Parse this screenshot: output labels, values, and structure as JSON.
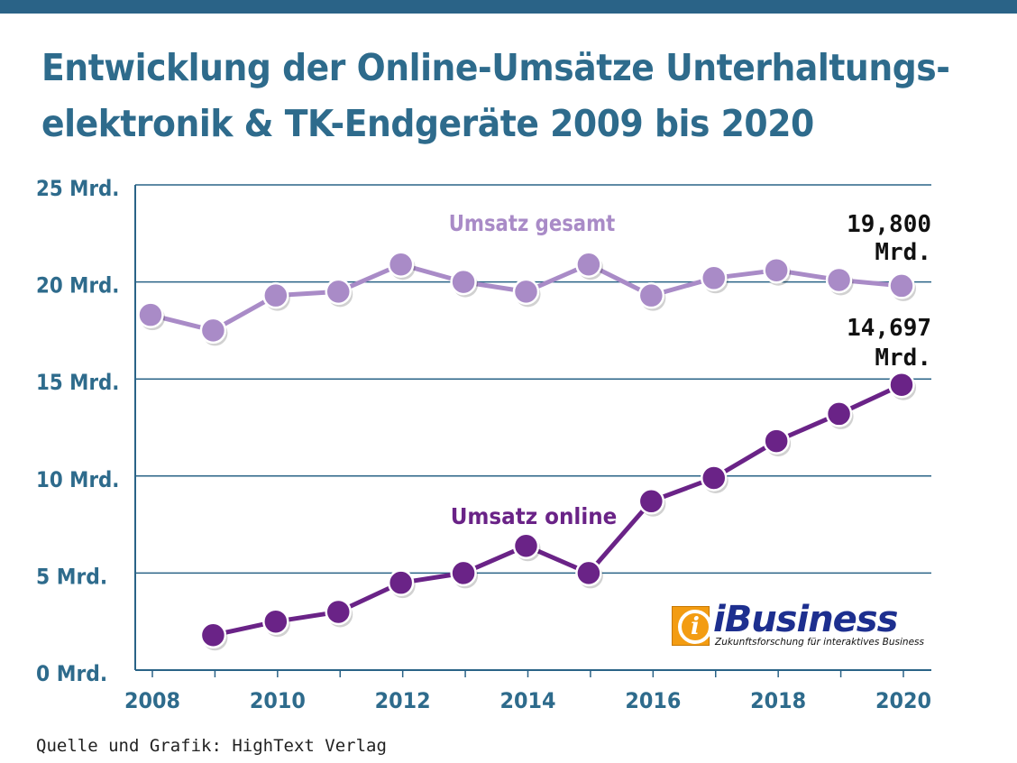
{
  "header": {
    "title_line1": "Entwicklung der Online-Umsätze Unterhaltungs-",
    "title_line2": "elektronik & TK-Endgeräte 2009 bis 2020"
  },
  "logo": {
    "mark": "i",
    "name": "iBusiness",
    "tagline": "Zukunftsforschung für interaktives Business"
  },
  "footer": {
    "source": "Quelle und Grafik: HighText Verlag"
  },
  "colors": {
    "top_bar": "#2a6387",
    "title": "#2e6b8c",
    "axis_text": "#2e6b8c",
    "gridline": "#2a6387",
    "series_gesamt": "#a98bc7",
    "series_online": "#6a2387",
    "value_label": "#111111"
  },
  "chart_data": {
    "type": "line",
    "title": "Entwicklung der Online-Umsätze Unterhaltungselektronik & TK-Endgeräte 2009 bis 2020",
    "xlim": [
      2008,
      2020
    ],
    "ylim": [
      0,
      25
    ],
    "y_ticks": [
      0,
      5,
      10,
      15,
      20,
      25
    ],
    "y_tick_labels": [
      "0 Mrd.",
      "5 Mrd.",
      "10 Mrd.",
      "15 Mrd.",
      "20 Mrd.",
      "25 Mrd."
    ],
    "x_ticks": [
      2008,
      2010,
      2012,
      2014,
      2016,
      2018,
      2020
    ],
    "x_tick_labels": [
      "2008",
      "2010",
      "2012",
      "2014",
      "2016",
      "2018",
      "2020"
    ],
    "grid": true,
    "series": [
      {
        "name": "Umsatz gesamt",
        "x": [
          2008,
          2009,
          2010,
          2011,
          2012,
          2013,
          2014,
          2015,
          2016,
          2017,
          2018,
          2019,
          2020
        ],
        "values": [
          18.3,
          17.5,
          19.3,
          19.5,
          20.9,
          20.0,
          19.5,
          20.9,
          19.3,
          20.2,
          20.6,
          20.1,
          19.8
        ]
      },
      {
        "name": "Umsatz online",
        "x": [
          2009,
          2010,
          2011,
          2012,
          2013,
          2014,
          2015,
          2016,
          2017,
          2018,
          2019,
          2020
        ],
        "values": [
          1.8,
          2.5,
          3.0,
          4.5,
          5.0,
          6.4,
          5.0,
          8.7,
          9.9,
          11.8,
          13.2,
          14.697
        ]
      }
    ],
    "annotations": [
      {
        "series": "Umsatz gesamt",
        "line1": "19,800",
        "line2": "Mrd."
      },
      {
        "series": "Umsatz online",
        "line1": "14,697",
        "line2": "Mrd."
      }
    ]
  }
}
